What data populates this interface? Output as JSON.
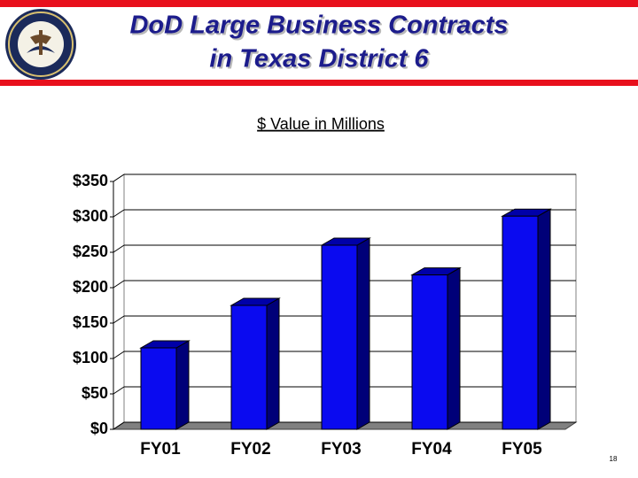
{
  "chart_data": {
    "type": "bar3d",
    "title": [
      "DoD Large Business Contracts",
      "in Texas District 6"
    ],
    "subtitle": "$ Value in Millions",
    "categories": [
      "FY01",
      "FY02",
      "FY03",
      "FY04",
      "FY05"
    ],
    "values": [
      115,
      175,
      260,
      218,
      301
    ],
    "color": "#0a0af0",
    "ylim": [
      0,
      350
    ],
    "yticks": [
      {
        "value": 0,
        "label": "$0"
      },
      {
        "value": 50,
        "label": "$50"
      },
      {
        "value": 100,
        "label": "$100"
      },
      {
        "value": 150,
        "label": "$150"
      },
      {
        "value": 200,
        "label": "$200"
      },
      {
        "value": 250,
        "label": "$250"
      },
      {
        "value": 300,
        "label": "$300"
      },
      {
        "value": 350,
        "label": "$350"
      }
    ],
    "grid": true
  },
  "slide_number": "18"
}
